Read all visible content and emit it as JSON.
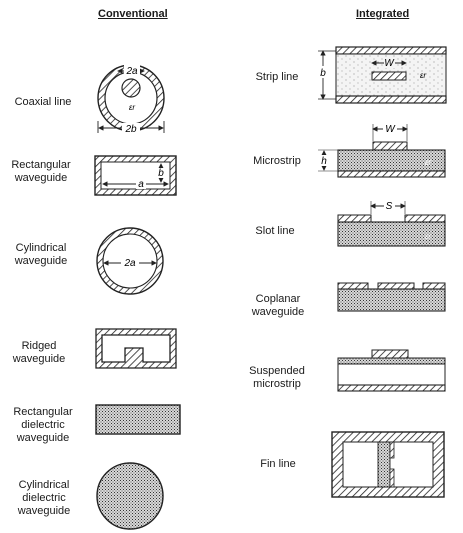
{
  "headers": {
    "conventional": "Conventional",
    "integrated": "Integrated"
  },
  "conventional": [
    {
      "name": "Coaxial line"
    },
    {
      "name": "Rectangular waveguide"
    },
    {
      "name": "Cylindrical waveguide"
    },
    {
      "name": "Ridged waveguide"
    },
    {
      "name": "Rectangular dielectric waveguide"
    },
    {
      "name": "Cylindrical dielectric waveguide"
    }
  ],
  "integrated": [
    {
      "name": "Strip line"
    },
    {
      "name": "Microstrip"
    },
    {
      "name": "Slot line"
    },
    {
      "name": "Coplanar waveguide"
    },
    {
      "name": "Suspended microstrip"
    },
    {
      "name": "Fin line"
    }
  ],
  "dims": {
    "coax_inner": "2a",
    "coax_outer": "2b",
    "coax_eps": "εr",
    "rect_a": "a",
    "rect_b": "b",
    "cyl_a": "2a",
    "strip_b": "b",
    "strip_w": "W",
    "strip_eps": "εr",
    "micro_w": "W",
    "micro_h": "h",
    "micro_eps": "εr",
    "slot_s": "S",
    "slot_eps": "εr"
  }
}
